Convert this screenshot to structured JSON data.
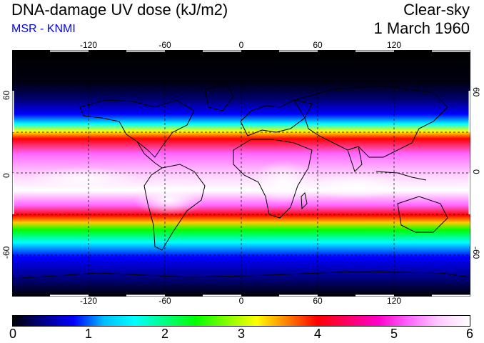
{
  "header": {
    "title": "DNA-damage UV dose (kJ/m2)",
    "subtitle": "MSR - KNMI",
    "condition": "Clear-sky",
    "date": "1 March 1960"
  },
  "colors": {
    "subtitle": "#0000ff",
    "colormap": [
      "#000000",
      "#00008b",
      "#0000ff",
      "#00bfff",
      "#00ffff",
      "#00ff80",
      "#00ff00",
      "#80ff00",
      "#ffff00",
      "#ff8000",
      "#ff0000",
      "#ff0066",
      "#ff00cc",
      "#ff66ff",
      "#ffccff",
      "#ffffff"
    ]
  },
  "map": {
    "lon_ticks": [
      "-120",
      "-60",
      "0",
      "60",
      "120"
    ],
    "lat_ticks": [
      "60",
      "0",
      "-60"
    ],
    "lon_range": [
      -180,
      180
    ],
    "lat_range": [
      -90,
      90
    ]
  },
  "colorbar": {
    "labels": [
      "0",
      "1",
      "2",
      "3",
      "4",
      "5",
      "6"
    ],
    "range": [
      0,
      6
    ]
  }
}
